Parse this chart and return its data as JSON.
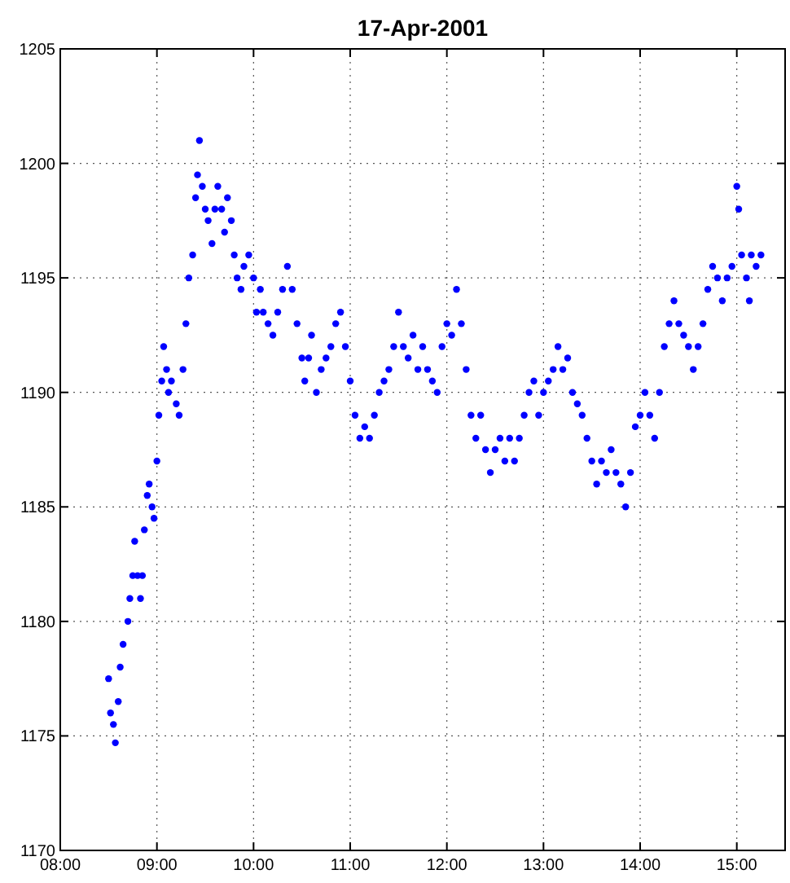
{
  "chart_data": {
    "type": "scatter",
    "title": "17-Apr-2001",
    "marker": "circle",
    "grid": true,
    "xlim": [
      8,
      15.5
    ],
    "ylim": [
      1170,
      1205
    ],
    "xticks": [
      {
        "value": 8,
        "label": "08:00"
      },
      {
        "value": 9,
        "label": "09:00"
      },
      {
        "value": 10,
        "label": "10:00"
      },
      {
        "value": 11,
        "label": "11:00"
      },
      {
        "value": 12,
        "label": "12:00"
      },
      {
        "value": 13,
        "label": "13:00"
      },
      {
        "value": 14,
        "label": "14:00"
      },
      {
        "value": 15,
        "label": "15:00"
      }
    ],
    "yticks": [
      1170,
      1175,
      1180,
      1185,
      1190,
      1195,
      1200,
      1205
    ],
    "series": [
      {
        "color": "#0000ff",
        "x": [
          8.5,
          8.52,
          8.55,
          8.57,
          8.6,
          8.62,
          8.65,
          8.7,
          8.72,
          8.75,
          8.77,
          8.8,
          8.83,
          8.85,
          8.87,
          8.9,
          8.92,
          8.95,
          8.97,
          9.0,
          9.02,
          9.05,
          9.07,
          9.1,
          9.12,
          9.15,
          9.2,
          9.23,
          9.27,
          9.3,
          9.33,
          9.37,
          9.4,
          9.42,
          9.44,
          9.47,
          9.5,
          9.53,
          9.57,
          9.6,
          9.63,
          9.67,
          9.7,
          9.73,
          9.77,
          9.8,
          9.83,
          9.87,
          9.9,
          9.95,
          10.0,
          10.03,
          10.07,
          10.1,
          10.15,
          10.2,
          10.25,
          10.3,
          10.35,
          10.4,
          10.45,
          10.5,
          10.53,
          10.57,
          10.6,
          10.65,
          10.7,
          10.75,
          10.8,
          10.85,
          10.9,
          10.95,
          11.0,
          11.05,
          11.1,
          11.15,
          11.2,
          11.25,
          11.3,
          11.35,
          11.4,
          11.45,
          11.5,
          11.55,
          11.6,
          11.65,
          11.7,
          11.75,
          11.8,
          11.85,
          11.9,
          11.95,
          12.0,
          12.05,
          12.1,
          12.15,
          12.2,
          12.25,
          12.3,
          12.35,
          12.4,
          12.45,
          12.5,
          12.55,
          12.6,
          12.65,
          12.7,
          12.75,
          12.8,
          12.85,
          12.9,
          12.95,
          13.0,
          13.05,
          13.1,
          13.15,
          13.2,
          13.25,
          13.3,
          13.35,
          13.4,
          13.45,
          13.5,
          13.55,
          13.6,
          13.65,
          13.7,
          13.75,
          13.8,
          13.85,
          13.9,
          13.95,
          14.0,
          14.05,
          14.1,
          14.15,
          14.2,
          14.25,
          14.3,
          14.35,
          14.4,
          14.45,
          14.5,
          14.55,
          14.6,
          14.65,
          14.7,
          14.75,
          14.8,
          14.85,
          14.9,
          14.95,
          15.0,
          15.02,
          15.05,
          15.1,
          15.13,
          15.15,
          15.2,
          15.25
        ],
        "values": [
          1177.5,
          1176,
          1175.5,
          1174.7,
          1176.5,
          1178,
          1179,
          1180,
          1181,
          1182,
          1183.5,
          1182,
          1181,
          1182,
          1184,
          1185.5,
          1186,
          1185,
          1184.5,
          1187,
          1189,
          1190.5,
          1192,
          1191,
          1190,
          1190.5,
          1189.5,
          1189,
          1191,
          1193,
          1195,
          1196,
          1198.5,
          1199.5,
          1201,
          1199,
          1198,
          1197.5,
          1196.5,
          1198,
          1199,
          1198,
          1197,
          1198.5,
          1197.5,
          1196,
          1195,
          1194.5,
          1195.5,
          1196,
          1195,
          1193.5,
          1194.5,
          1193.5,
          1193,
          1192.5,
          1193.5,
          1194.5,
          1195.5,
          1194.5,
          1193,
          1191.5,
          1190.5,
          1191.5,
          1192.5,
          1190,
          1191,
          1191.5,
          1192,
          1193,
          1193.5,
          1192,
          1190.5,
          1189,
          1188,
          1188.5,
          1188,
          1189,
          1190,
          1190.5,
          1191,
          1192,
          1193.5,
          1192,
          1191.5,
          1192.5,
          1191,
          1192,
          1191,
          1190.5,
          1190,
          1192,
          1193,
          1192.5,
          1194.5,
          1193,
          1191,
          1189,
          1188,
          1189,
          1187.5,
          1186.5,
          1187.5,
          1188,
          1187,
          1188,
          1187,
          1188,
          1189,
          1190,
          1190.5,
          1189,
          1190,
          1190.5,
          1191,
          1192,
          1191,
          1191.5,
          1190,
          1189.5,
          1189,
          1188,
          1187,
          1186,
          1187,
          1186.5,
          1187.5,
          1186.5,
          1186,
          1185,
          1186.5,
          1188.5,
          1189,
          1190,
          1189,
          1188,
          1190,
          1192,
          1193,
          1194,
          1193,
          1192.5,
          1192,
          1191,
          1192,
          1193,
          1194.5,
          1195.5,
          1195,
          1194,
          1195,
          1195.5,
          1199,
          1198,
          1196,
          1195,
          1194,
          1196,
          1195.5,
          1196
        ]
      }
    ]
  }
}
